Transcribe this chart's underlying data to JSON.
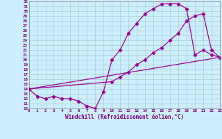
{
  "xlabel": "Windchill (Refroidissement éolien,°C)",
  "bg_color": "#cceeff",
  "grid_color": "#aacccc",
  "line_color": "#990099",
  "xmin": 0,
  "xmax": 23,
  "ymin": 10,
  "ymax": 32,
  "yticks": [
    10,
    11,
    12,
    13,
    14,
    15,
    16,
    17,
    18,
    19,
    20,
    21,
    22,
    23,
    24,
    25,
    26,
    27,
    28,
    29,
    30,
    31,
    32
  ],
  "xticks": [
    0,
    1,
    2,
    3,
    4,
    5,
    6,
    7,
    8,
    9,
    10,
    11,
    12,
    13,
    14,
    15,
    16,
    17,
    18,
    19,
    20,
    21,
    22,
    23
  ],
  "line1_x": [
    0,
    1,
    2,
    3,
    4,
    5,
    6,
    7,
    8,
    9,
    10,
    11,
    12,
    13,
    14,
    15,
    16,
    17,
    18,
    19,
    20,
    21,
    22,
    23
  ],
  "line1_y": [
    14,
    12.5,
    12,
    12.5,
    12,
    12,
    11.5,
    10.5,
    10,
    13.5,
    20,
    22,
    25.5,
    27.5,
    29.5,
    30.5,
    31.5,
    31.5,
    31.5,
    30.5,
    21,
    22,
    21,
    20.5
  ],
  "line2_x": [
    0,
    10,
    11,
    12,
    13,
    14,
    15,
    16,
    17,
    18,
    19,
    20,
    21,
    22,
    23
  ],
  "line2_y": [
    14,
    15.5,
    16.5,
    17.5,
    19,
    20,
    21.5,
    22.5,
    24,
    25.5,
    28,
    29,
    29.5,
    22,
    20.5
  ],
  "line3_x": [
    0,
    23
  ],
  "line3_y": [
    14,
    20.5
  ]
}
